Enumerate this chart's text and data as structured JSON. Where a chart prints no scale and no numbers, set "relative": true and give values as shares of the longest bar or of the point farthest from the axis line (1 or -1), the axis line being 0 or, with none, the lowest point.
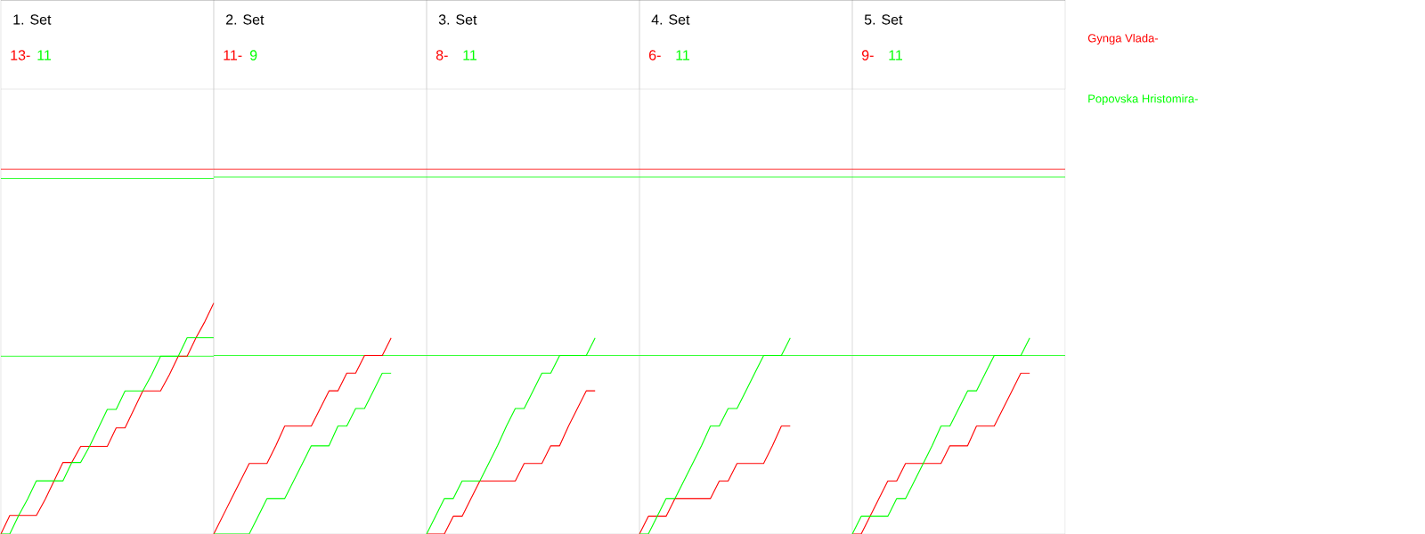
{
  "chart_data": [
    {
      "type": "line",
      "title": "1. Set",
      "annotations": [
        "13-",
        "11"
      ],
      "relative": true,
      "categories": [
        null,
        null,
        null,
        null,
        null,
        null,
        null,
        null,
        null,
        null,
        null,
        null,
        null,
        null,
        null,
        null,
        null,
        null,
        null,
        null,
        null,
        null,
        null,
        null,
        null
      ],
      "series": [
        {
          "color": "#ff0000",
          "values": [
            0,
            0.08,
            0.08,
            0.08,
            0.08,
            0.15,
            0.23,
            0.31,
            0.31,
            0.38,
            0.38,
            0.38,
            0.38,
            0.46,
            0.46,
            0.54,
            0.62,
            0.62,
            0.62,
            0.69,
            0.77,
            0.77,
            0.85,
            0.92,
            1
          ]
        },
        {
          "color": "#00ff00",
          "values": [
            0,
            0,
            0.08,
            0.15,
            0.23,
            0.23,
            0.23,
            0.23,
            0.31,
            0.31,
            0.38,
            0.46,
            0.54,
            0.54,
            0.62,
            0.62,
            0.62,
            0.69,
            0.77,
            0.77,
            0.77,
            0.85,
            0.85,
            0.85,
            0.85
          ]
        }
      ],
      "ref_lines": [
        {
          "axis": "y",
          "value": 1.58,
          "color": "#ff0000"
        },
        {
          "axis": "y",
          "value": 1.54,
          "color": "#00ff00"
        },
        {
          "axis": "y",
          "value": 0.77,
          "color": "#00ff00"
        }
      ]
    },
    {
      "type": "line",
      "title": "2. Set",
      "annotations": [
        "11-",
        "9"
      ],
      "relative": true,
      "categories": [
        null,
        null,
        null,
        null,
        null,
        null,
        null,
        null,
        null,
        null,
        null,
        null,
        null,
        null,
        null,
        null,
        null,
        null,
        null,
        null,
        null,
        null,
        null,
        null,
        null
      ],
      "series": [
        {
          "color": "#ff0000",
          "values": [
            0,
            0.09,
            0.18,
            0.27,
            0.36,
            0.36,
            0.36,
            0.45,
            0.55,
            0.55,
            0.55,
            0.55,
            0.64,
            0.73,
            0.73,
            0.82,
            0.82,
            0.91,
            0.91,
            0.91,
            1,
            null,
            null,
            null,
            null
          ]
        },
        {
          "color": "#00ff00",
          "values": [
            0,
            0,
            0,
            0,
            0,
            0.09,
            0.18,
            0.18,
            0.18,
            0.27,
            0.36,
            0.45,
            0.45,
            0.45,
            0.55,
            0.55,
            0.64,
            0.64,
            0.73,
            0.82,
            0.82,
            null,
            null,
            null,
            null
          ]
        }
      ],
      "ref_lines": [
        {
          "axis": "y",
          "value": 1.86,
          "color": "#ff0000"
        },
        {
          "axis": "y",
          "value": 1.82,
          "color": "#00ff00"
        },
        {
          "axis": "y",
          "value": 0.91,
          "color": "#00ff00"
        }
      ]
    },
    {
      "type": "line",
      "title": "3. Set",
      "annotations": [
        "8-",
        "11"
      ],
      "relative": true,
      "categories": [
        null,
        null,
        null,
        null,
        null,
        null,
        null,
        null,
        null,
        null,
        null,
        null,
        null,
        null,
        null,
        null,
        null,
        null,
        null,
        null,
        null,
        null,
        null,
        null,
        null
      ],
      "series": [
        {
          "color": "#ff0000",
          "values": [
            0,
            0,
            0,
            0.09,
            0.09,
            0.18,
            0.27,
            0.27,
            0.27,
            0.27,
            0.27,
            0.36,
            0.36,
            0.36,
            0.45,
            0.45,
            0.55,
            0.64,
            0.73,
            0.73,
            null,
            null,
            null,
            null,
            null
          ]
        },
        {
          "color": "#00ff00",
          "values": [
            0,
            0.09,
            0.18,
            0.18,
            0.27,
            0.27,
            0.27,
            0.36,
            0.45,
            0.55,
            0.64,
            0.64,
            0.73,
            0.82,
            0.82,
            0.91,
            0.91,
            0.91,
            0.91,
            1,
            null,
            null,
            null,
            null,
            null
          ]
        }
      ],
      "ref_lines": [
        {
          "axis": "y",
          "value": 1.86,
          "color": "#ff0000"
        },
        {
          "axis": "y",
          "value": 1.82,
          "color": "#00ff00"
        },
        {
          "axis": "y",
          "value": 0.91,
          "color": "#00ff00"
        }
      ]
    },
    {
      "type": "line",
      "title": "4. Set",
      "annotations": [
        "6-",
        "11"
      ],
      "relative": true,
      "categories": [
        null,
        null,
        null,
        null,
        null,
        null,
        null,
        null,
        null,
        null,
        null,
        null,
        null,
        null,
        null,
        null,
        null,
        null,
        null,
        null,
        null,
        null,
        null,
        null,
        null
      ],
      "series": [
        {
          "color": "#ff0000",
          "values": [
            0,
            0.09,
            0.09,
            0.09,
            0.18,
            0.18,
            0.18,
            0.18,
            0.18,
            0.27,
            0.27,
            0.36,
            0.36,
            0.36,
            0.36,
            0.45,
            0.55,
            0.55,
            null,
            null,
            null,
            null,
            null,
            null,
            null
          ]
        },
        {
          "color": "#00ff00",
          "values": [
            0,
            0,
            0.09,
            0.18,
            0.18,
            0.27,
            0.36,
            0.45,
            0.55,
            0.55,
            0.64,
            0.64,
            0.73,
            0.82,
            0.91,
            0.91,
            0.91,
            1,
            null,
            null,
            null,
            null,
            null,
            null,
            null
          ]
        }
      ],
      "ref_lines": [
        {
          "axis": "y",
          "value": 1.86,
          "color": "#ff0000"
        },
        {
          "axis": "y",
          "value": 1.82,
          "color": "#00ff00"
        },
        {
          "axis": "y",
          "value": 0.91,
          "color": "#00ff00"
        }
      ]
    },
    {
      "type": "line",
      "title": "5. Set",
      "annotations": [
        "9-",
        "11"
      ],
      "relative": true,
      "categories": [
        null,
        null,
        null,
        null,
        null,
        null,
        null,
        null,
        null,
        null,
        null,
        null,
        null,
        null,
        null,
        null,
        null,
        null,
        null,
        null,
        null,
        null,
        null,
        null,
        null
      ],
      "series": [
        {
          "name": "Gynga Vlada-",
          "color": "#ff0000",
          "values": [
            0,
            0,
            0.09,
            0.18,
            0.27,
            0.27,
            0.36,
            0.36,
            0.36,
            0.36,
            0.36,
            0.45,
            0.45,
            0.45,
            0.55,
            0.55,
            0.55,
            0.64,
            0.73,
            0.82,
            0.82,
            null,
            null,
            null,
            null
          ]
        },
        {
          "name": "Popovska Hristomira-",
          "color": "#00ff00",
          "values": [
            0,
            0.09,
            0.09,
            0.09,
            0.09,
            0.18,
            0.18,
            0.27,
            0.36,
            0.45,
            0.55,
            0.55,
            0.64,
            0.73,
            0.73,
            0.82,
            0.91,
            0.91,
            0.91,
            0.91,
            1,
            null,
            null,
            null,
            null
          ]
        }
      ],
      "ref_lines": [
        {
          "axis": "y",
          "value": 1.86,
          "color": "#ff0000"
        },
        {
          "axis": "y",
          "value": 1.82,
          "color": "#00ff00"
        },
        {
          "axis": "y",
          "value": 0.91,
          "color": "#00ff00"
        }
      ]
    }
  ]
}
